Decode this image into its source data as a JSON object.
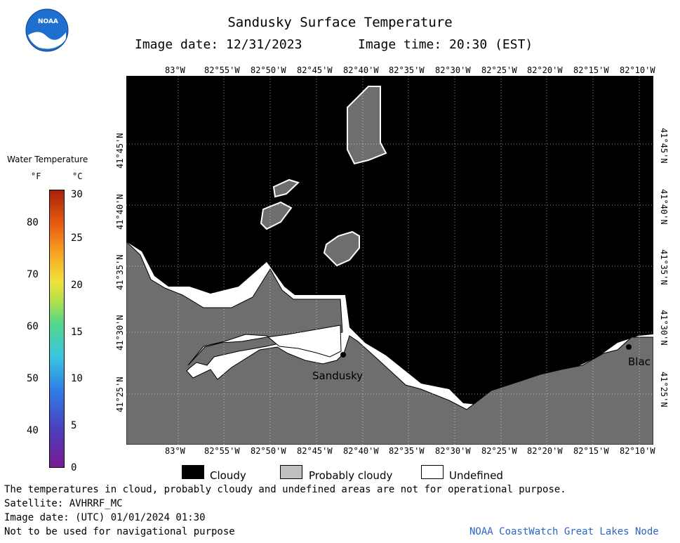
{
  "header": {
    "title": "Sandusky Surface Temperature",
    "image_date": "Image date: 12/31/2023",
    "image_time": "Image time: 20:30 (EST)"
  },
  "logo": {
    "text": "NOAA"
  },
  "lon_ticks": [
    "83°W",
    "82°55'W",
    "82°50'W",
    "82°45'W",
    "82°40'W",
    "82°35'W",
    "82°30'W",
    "82°25'W",
    "82°20'W",
    "82°15'W",
    "82°10'W"
  ],
  "lat_ticks": [
    "41°45'N",
    "41°40'N",
    "41°35'N",
    "41°30'N",
    "41°25'N"
  ],
  "colorbar": {
    "title": "Water Temperature",
    "unit_f": "°F",
    "unit_c": "°C",
    "f_ticks": [
      "80",
      "70",
      "60",
      "50",
      "40"
    ],
    "c_ticks": [
      "30",
      "25",
      "20",
      "15",
      "10",
      "5",
      "0"
    ]
  },
  "map": {
    "cities": [
      {
        "name": "Sandusky"
      },
      {
        "name": "Blac"
      }
    ]
  },
  "legend": [
    {
      "label": "Cloudy",
      "color": "#000000"
    },
    {
      "label": "Probably cloudy",
      "color": "#bfbfbf"
    },
    {
      "label": "Undefined",
      "color": "#ffffff"
    }
  ],
  "footer": {
    "disclaimer": "The temperatures in cloud, probably cloudy and undefined areas are not for operational purpose.",
    "satellite": "Satellite: AVHRRF_MC",
    "utc_date": "Image date: (UTC) 01/01/2024  01:30",
    "nav_warning": "Not to be used for navigational purpose",
    "credit": "NOAA CoastWatch Great Lakes Node"
  }
}
